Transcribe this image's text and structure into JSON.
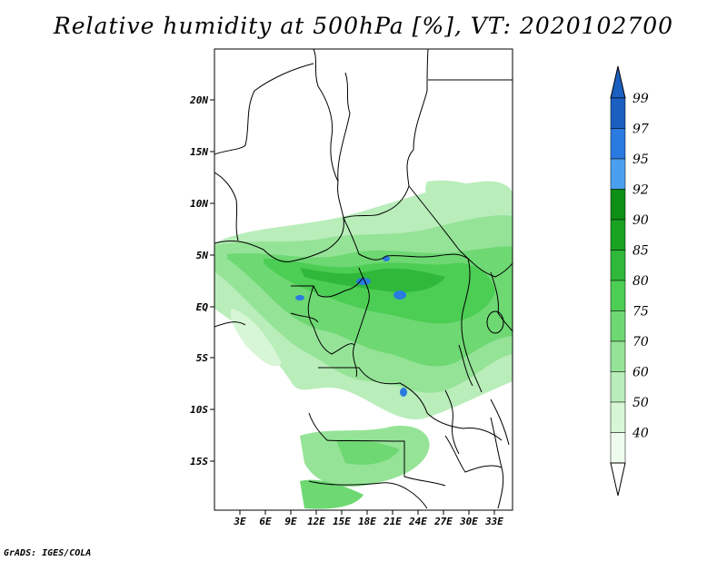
{
  "title": "Relative humidity at 500hPa [%], VT: 2020102700",
  "lat_labels": [
    "20N",
    "15N",
    "10N",
    "5N",
    "EQ",
    "5S",
    "10S",
    "15S"
  ],
  "lon_labels": [
    "3E",
    "6E",
    "9E",
    "12E",
    "15E",
    "18E",
    "21E",
    "24E",
    "27E",
    "30E",
    "33E"
  ],
  "colorbar": {
    "levels": [
      "99",
      "97",
      "95",
      "92",
      "90",
      "85",
      "80",
      "75",
      "70",
      "60",
      "50",
      "40"
    ],
    "colors": [
      "#1b5fc1",
      "#2a7be0",
      "#4aa0ee",
      "#0e8f16",
      "#1aa321",
      "#2fb83a",
      "#4ccd54",
      "#6ed873",
      "#95e397",
      "#b9edba",
      "#d6f6d6",
      "#eefcee"
    ]
  },
  "credit": "GrADS: IGES/COLA"
}
